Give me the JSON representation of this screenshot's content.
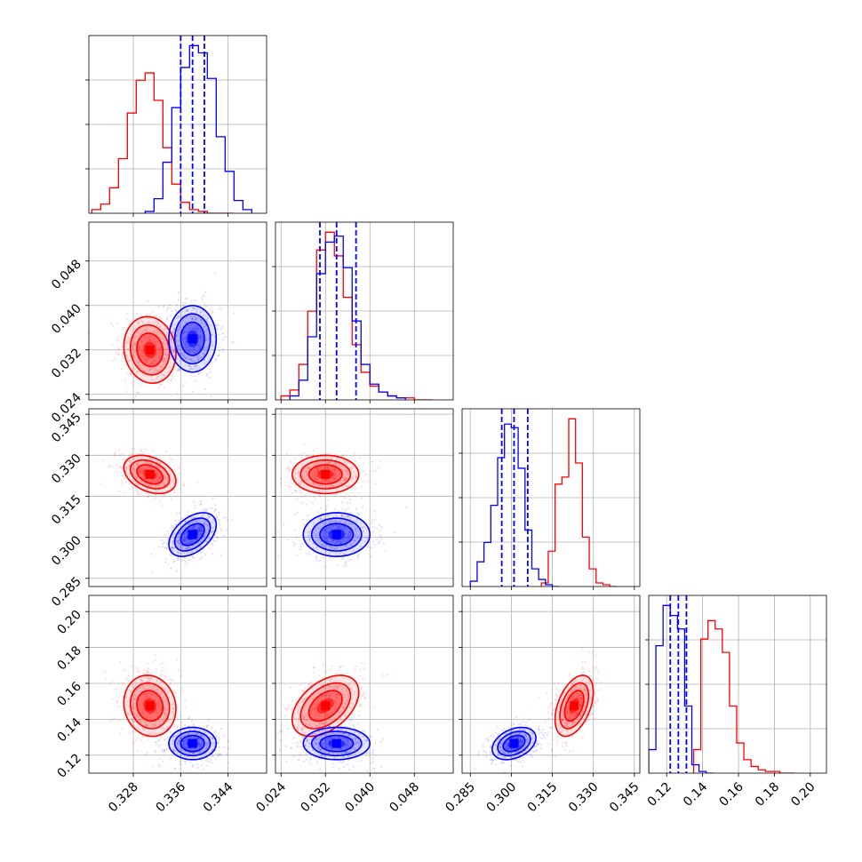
{
  "chart_data": {
    "type": "corner",
    "title": "",
    "grid": true,
    "colors": {
      "red_series": "#ff0000",
      "blue_series": "#0000ff"
    },
    "parameters": [
      {
        "ticks": [
          "0.328",
          "0.336",
          "0.344"
        ],
        "tick_values": [
          0.328,
          0.336,
          0.344
        ],
        "range": [
          0.3205,
          0.3505
        ]
      },
      {
        "ticks": [
          "0.024",
          "0.032",
          "0.040",
          "0.048"
        ],
        "tick_values": [
          0.024,
          0.032,
          0.04,
          0.048
        ],
        "range": [
          0.023,
          0.055
        ]
      },
      {
        "ticks": [
          "0.285",
          "0.300",
          "0.315",
          "0.330",
          "0.345"
        ],
        "tick_values": [
          0.285,
          0.3,
          0.315,
          0.33,
          0.345
        ],
        "range": [
          0.282,
          0.347
        ]
      },
      {
        "ticks": [
          "0.12",
          "0.14",
          "0.16",
          "0.18",
          "0.20"
        ],
        "tick_values": [
          0.12,
          0.14,
          0.16,
          0.18,
          0.2
        ],
        "range": [
          0.11,
          0.209
        ]
      }
    ],
    "series": [
      {
        "color": "#ff0000",
        "means": [
          0.3308,
          0.032,
          0.323,
          0.1475
        ],
        "sigmas": [
          0.0022,
          0.003,
          0.0035,
          0.0085
        ],
        "correlations": {
          "1-0": -0.1,
          "2-0": -0.35,
          "2-1": 0.0,
          "3-0": -0.1,
          "3-1": 0.45,
          "3-2": 0.45
        },
        "histograms": [
          {
            "edges": [
              0.321,
              0.3225,
              0.324,
              0.3255,
              0.327,
              0.3285,
              0.33,
              0.3315,
              0.333,
              0.3345,
              0.336,
              0.3375,
              0.339,
              0.3405,
              0.342,
              0.3435,
              0.345
            ],
            "counts": [
              2,
              5,
              14,
              30,
              55,
              73,
              77,
              62,
              36,
              16,
              6,
              2,
              1,
              0,
              0,
              0
            ]
          },
          {
            "edges": [
              0.024,
              0.0256,
              0.0272,
              0.0288,
              0.0304,
              0.032,
              0.0336,
              0.0352,
              0.0368,
              0.0384,
              0.04,
              0.0416,
              0.0432,
              0.0448,
              0.0464,
              0.048,
              0.0496,
              0.0512
            ],
            "counts": [
              2,
              5,
              18,
              45,
              76,
              85,
              73,
              52,
              28,
              14,
              7,
              4,
              2,
              1,
              1,
              0,
              0
            ]
          },
          {
            "edges": [
              0.311,
              0.3135,
              0.316,
              0.3185,
              0.321,
              0.3235,
              0.326,
              0.3285,
              0.331,
              0.3335,
              0.336,
              0.3385
            ],
            "counts": [
              2,
              20,
              58,
              62,
              95,
              70,
              28,
              10,
              2,
              1,
              0
            ]
          },
          {
            "edges": [
              0.135,
              0.139,
              0.143,
              0.147,
              0.151,
              0.155,
              0.159,
              0.163,
              0.167,
              0.171,
              0.175,
              0.179,
              0.183,
              0.187,
              0.191
            ],
            "counts": [
              14,
              80,
              91,
              86,
              72,
              40,
              18,
              8,
              4,
              2,
              1,
              1,
              0,
              0
            ]
          }
        ]
      },
      {
        "color": "#0000ff",
        "means": [
          0.338,
          0.034,
          0.301,
          0.1265
        ],
        "sigmas": [
          0.002,
          0.003,
          0.004,
          0.0045
        ],
        "correlations": {
          "1-0": 0.0,
          "2-0": 0.45,
          "2-1": 0.0,
          "3-0": 0.0,
          "3-1": 0.0,
          "3-2": 0.35
        },
        "quantiles": [
          [
            0.336,
            0.338,
            0.34
          ],
          [
            0.031,
            0.034,
            0.0375
          ],
          [
            0.2965,
            0.301,
            0.306
          ],
          [
            0.122,
            0.1265,
            0.131
          ]
        ],
        "histograms": [
          {
            "edges": [
              0.33,
              0.3315,
              0.333,
              0.3345,
              0.336,
              0.3375,
              0.339,
              0.3405,
              0.342,
              0.3435,
              0.345,
              0.3465,
              0.348
            ],
            "counts": [
              1,
              8,
              28,
              58,
              80,
              92,
              88,
              74,
              42,
              23,
              7,
              2
            ]
          },
          {
            "edges": [
              0.0256,
              0.0272,
              0.0288,
              0.0304,
              0.032,
              0.0336,
              0.0352,
              0.0368,
              0.0384,
              0.04,
              0.0416,
              0.0432,
              0.0448,
              0.0464
            ],
            "counts": [
              2,
              10,
              32,
              64,
              80,
              83,
              67,
              40,
              18,
              8,
              4,
              2,
              1
            ]
          },
          {
            "edges": [
              0.285,
              0.2875,
              0.29,
              0.2925,
              0.295,
              0.2975,
              0.3,
              0.3025,
              0.305,
              0.3075,
              0.31,
              0.3125,
              0.315,
              0.3175
            ],
            "counts": [
              3,
              14,
              25,
              46,
              73,
              92,
              90,
              67,
              32,
              10,
              4,
              1,
              0
            ]
          },
          {
            "edges": [
              0.11,
              0.114,
              0.118,
              0.122,
              0.126,
              0.13,
              0.134,
              0.138,
              0.142,
              0.146
            ],
            "counts": [
              14,
              76,
              100,
              94,
              86,
              40,
              5,
              1,
              0
            ]
          }
        ]
      }
    ]
  }
}
